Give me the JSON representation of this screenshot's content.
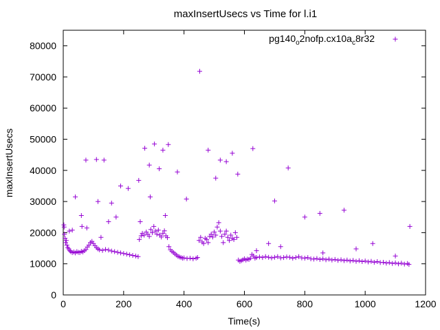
{
  "chart_data": {
    "type": "scatter",
    "title": "maxInsertUsecs vs Time for l.i1",
    "xlabel": "Time(s)",
    "ylabel": "maxInsertUsecs",
    "xlim": [
      0,
      1200
    ],
    "ylim": [
      0,
      85000
    ],
    "xticks": [
      0,
      200,
      400,
      600,
      800,
      1000,
      1200
    ],
    "yticks": [
      0,
      10000,
      20000,
      30000,
      40000,
      50000,
      60000,
      70000,
      80000
    ],
    "grid": false,
    "legend_position": "top-right",
    "marker": "+",
    "series": [
      {
        "name": "pg140_o2nofp.cx10a_c8r32",
        "legend_parts": [
          {
            "text": "pg140",
            "sub": false
          },
          {
            "text": "o",
            "sub": true
          },
          {
            "text": "2nofp.cx10a",
            "sub": false
          },
          {
            "text": "c",
            "sub": true
          },
          {
            "text": "8r32",
            "sub": false
          }
        ],
        "color": "#9400d3",
        "points": [
          [
            2,
            22500
          ],
          [
            3,
            21800
          ],
          [
            4,
            19500
          ],
          [
            6,
            18200
          ],
          [
            8,
            16800
          ],
          [
            10,
            17500
          ],
          [
            12,
            16000
          ],
          [
            15,
            15200
          ],
          [
            18,
            14800
          ],
          [
            22,
            14200
          ],
          [
            25,
            13900
          ],
          [
            20,
            20500
          ],
          [
            30,
            13600
          ],
          [
            35,
            13800
          ],
          [
            40,
            13500
          ],
          [
            45,
            13900
          ],
          [
            50,
            13700
          ],
          [
            55,
            13600
          ],
          [
            60,
            14000
          ],
          [
            65,
            13800
          ],
          [
            70,
            14200
          ],
          [
            75,
            14600
          ],
          [
            80,
            15400
          ],
          [
            85,
            16000
          ],
          [
            90,
            16800
          ],
          [
            95,
            17200
          ],
          [
            100,
            16500
          ],
          [
            105,
            15800
          ],
          [
            110,
            15200
          ],
          [
            115,
            14800
          ],
          [
            120,
            14500
          ],
          [
            130,
            14300
          ],
          [
            140,
            14600
          ],
          [
            150,
            14400
          ],
          [
            160,
            14100
          ],
          [
            170,
            13900
          ],
          [
            180,
            13700
          ],
          [
            190,
            13500
          ],
          [
            200,
            13300
          ],
          [
            210,
            13100
          ],
          [
            220,
            12900
          ],
          [
            230,
            12700
          ],
          [
            240,
            12500
          ],
          [
            248,
            12300
          ],
          [
            252,
            17800
          ],
          [
            258,
            19000
          ],
          [
            262,
            19800
          ],
          [
            268,
            19200
          ],
          [
            275,
            20200
          ],
          [
            280,
            19500
          ],
          [
            285,
            18800
          ],
          [
            290,
            21000
          ],
          [
            295,
            20000
          ],
          [
            300,
            22000
          ],
          [
            305,
            20500
          ],
          [
            310,
            19500
          ],
          [
            315,
            20800
          ],
          [
            320,
            19200
          ],
          [
            325,
            18600
          ],
          [
            330,
            19800
          ],
          [
            335,
            20600
          ],
          [
            340,
            19000
          ],
          [
            345,
            18400
          ],
          [
            350,
            15500
          ],
          [
            355,
            14500
          ],
          [
            360,
            14000
          ],
          [
            365,
            13600
          ],
          [
            370,
            13200
          ],
          [
            375,
            12800
          ],
          [
            380,
            12400
          ],
          [
            385,
            12200
          ],
          [
            390,
            12000
          ],
          [
            395,
            11800
          ],
          [
            400,
            11900
          ],
          [
            410,
            11700
          ],
          [
            420,
            11800
          ],
          [
            430,
            11600
          ],
          [
            440,
            11800
          ],
          [
            445,
            12000
          ],
          [
            450,
            17500
          ],
          [
            455,
            18500
          ],
          [
            460,
            17000
          ],
          [
            465,
            16500
          ],
          [
            470,
            18200
          ],
          [
            475,
            17800
          ],
          [
            480,
            16800
          ],
          [
            485,
            18800
          ],
          [
            490,
            19500
          ],
          [
            495,
            18600
          ],
          [
            500,
            20200
          ],
          [
            505,
            19200
          ],
          [
            510,
            21800
          ],
          [
            515,
            23200
          ],
          [
            520,
            20500
          ],
          [
            525,
            18800
          ],
          [
            530,
            16800
          ],
          [
            535,
            19500
          ],
          [
            540,
            20500
          ],
          [
            545,
            18500
          ],
          [
            550,
            17500
          ],
          [
            555,
            19200
          ],
          [
            560,
            18200
          ],
          [
            565,
            17800
          ],
          [
            570,
            20000
          ],
          [
            575,
            18500
          ],
          [
            580,
            11200
          ],
          [
            585,
            10800
          ],
          [
            590,
            11000
          ],
          [
            595,
            11300
          ],
          [
            600,
            11600
          ],
          [
            605,
            11200
          ],
          [
            610,
            11500
          ],
          [
            615,
            11400
          ],
          [
            620,
            11800
          ],
          [
            625,
            13000
          ],
          [
            630,
            12500
          ],
          [
            635,
            11800
          ],
          [
            640,
            12000
          ],
          [
            650,
            12200
          ],
          [
            660,
            12000
          ],
          [
            670,
            12300
          ],
          [
            680,
            12100
          ],
          [
            690,
            11900
          ],
          [
            700,
            12100
          ],
          [
            710,
            12300
          ],
          [
            720,
            11900
          ],
          [
            730,
            12000
          ],
          [
            740,
            12200
          ],
          [
            750,
            12100
          ],
          [
            760,
            11800
          ],
          [
            770,
            12000
          ],
          [
            780,
            12300
          ],
          [
            790,
            11900
          ],
          [
            800,
            11800
          ],
          [
            810,
            12000
          ],
          [
            820,
            11600
          ],
          [
            830,
            11500
          ],
          [
            840,
            11700
          ],
          [
            850,
            11400
          ],
          [
            860,
            11600
          ],
          [
            870,
            11300
          ],
          [
            880,
            11500
          ],
          [
            890,
            11200
          ],
          [
            900,
            11400
          ],
          [
            910,
            11100
          ],
          [
            920,
            11300
          ],
          [
            930,
            11000
          ],
          [
            940,
            11200
          ],
          [
            950,
            10900
          ],
          [
            960,
            11100
          ],
          [
            970,
            10800
          ],
          [
            980,
            11000
          ],
          [
            990,
            10700
          ],
          [
            1000,
            10900
          ],
          [
            1010,
            10600
          ],
          [
            1020,
            10800
          ],
          [
            1030,
            10500
          ],
          [
            1040,
            10700
          ],
          [
            1050,
            10400
          ],
          [
            1060,
            10500
          ],
          [
            1070,
            10200
          ],
          [
            1080,
            10400
          ],
          [
            1090,
            10100
          ],
          [
            1100,
            10300
          ],
          [
            1110,
            10000
          ],
          [
            1120,
            10200
          ],
          [
            1130,
            9900
          ],
          [
            1140,
            10100
          ],
          [
            1145,
            9800
          ],
          [
            30,
            20800
          ],
          [
            40,
            31500
          ],
          [
            60,
            25500
          ],
          [
            62,
            22000
          ],
          [
            75,
            43300
          ],
          [
            78,
            21500
          ],
          [
            110,
            43500
          ],
          [
            115,
            30000
          ],
          [
            125,
            18500
          ],
          [
            135,
            43300
          ],
          [
            150,
            23500
          ],
          [
            160,
            29500
          ],
          [
            175,
            25000
          ],
          [
            190,
            35000
          ],
          [
            215,
            34200
          ],
          [
            250,
            36800
          ],
          [
            255,
            23500
          ],
          [
            270,
            47100
          ],
          [
            285,
            41700
          ],
          [
            288,
            31500
          ],
          [
            302,
            48500
          ],
          [
            318,
            40500
          ],
          [
            330,
            46500
          ],
          [
            338,
            25500
          ],
          [
            348,
            48300
          ],
          [
            378,
            39500
          ],
          [
            408,
            30800
          ],
          [
            452,
            71800
          ],
          [
            480,
            46500
          ],
          [
            505,
            37500
          ],
          [
            520,
            43300
          ],
          [
            540,
            42800
          ],
          [
            560,
            45500
          ],
          [
            578,
            38800
          ],
          [
            628,
            47000
          ],
          [
            700,
            30200
          ],
          [
            745,
            40800
          ],
          [
            800,
            25000
          ],
          [
            680,
            16500
          ],
          [
            850,
            26200
          ],
          [
            930,
            27200
          ],
          [
            970,
            14800
          ],
          [
            1025,
            16500
          ],
          [
            1148,
            22000
          ],
          [
            1100,
            12500
          ],
          [
            860,
            13500
          ],
          [
            640,
            14200
          ],
          [
            720,
            15500
          ]
        ]
      }
    ]
  }
}
